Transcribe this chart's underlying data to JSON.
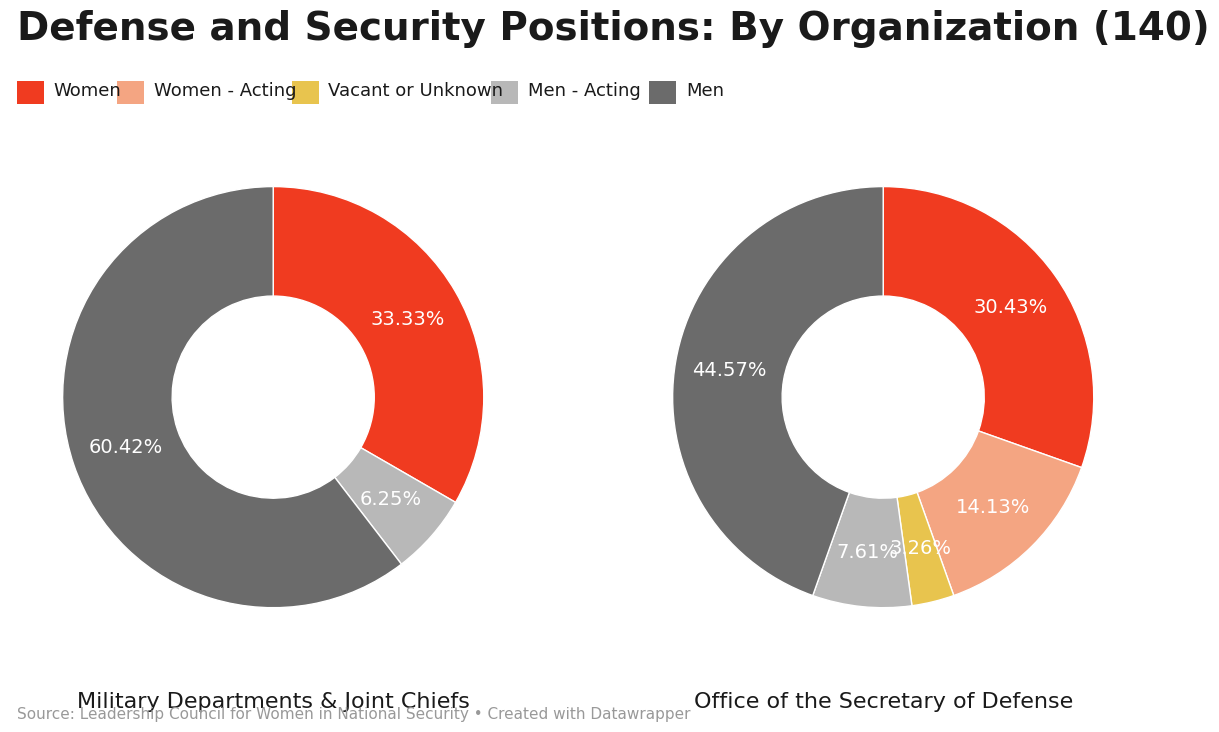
{
  "title": "Defense and Security Positions: By Organization (140)",
  "source_text": "Source: Leadership Council for Women in National Security • Created with Datawrapper",
  "background_color": "#ffffff",
  "title_fontsize": 28,
  "title_fontweight": "bold",
  "colors": {
    "Women": "#f03b20",
    "Women - Acting": "#f4a582",
    "Vacant or Unknown": "#e8c44e",
    "Men - Acting": "#b8b8b8",
    "Men": "#6b6b6b"
  },
  "legend_order": [
    "Women",
    "Women - Acting",
    "Vacant or Unknown",
    "Men - Acting",
    "Men"
  ],
  "charts": [
    {
      "title": "Military Departments & Joint Chiefs",
      "slices": [
        {
          "label": "Women",
          "pct": 33.33
        },
        {
          "label": "Men - Acting",
          "pct": 6.25
        },
        {
          "label": "Men",
          "pct": 60.42
        }
      ]
    },
    {
      "title": "Office of the Secretary of Defense",
      "slices": [
        {
          "label": "Women",
          "pct": 30.43
        },
        {
          "label": "Women - Acting",
          "pct": 14.13
        },
        {
          "label": "Vacant or Unknown",
          "pct": 3.26
        },
        {
          "label": "Men - Acting",
          "pct": 7.61
        },
        {
          "label": "Men",
          "pct": 44.57
        }
      ]
    }
  ],
  "wedge_linewidth": 1.0,
  "wedge_edgecolor": "#ffffff",
  "label_fontsize": 14,
  "label_color": "#ffffff",
  "subtitle_fontsize": 16,
  "source_fontsize": 11,
  "source_color": "#999999",
  "legend_fontsize": 13,
  "donut_width": 0.52
}
